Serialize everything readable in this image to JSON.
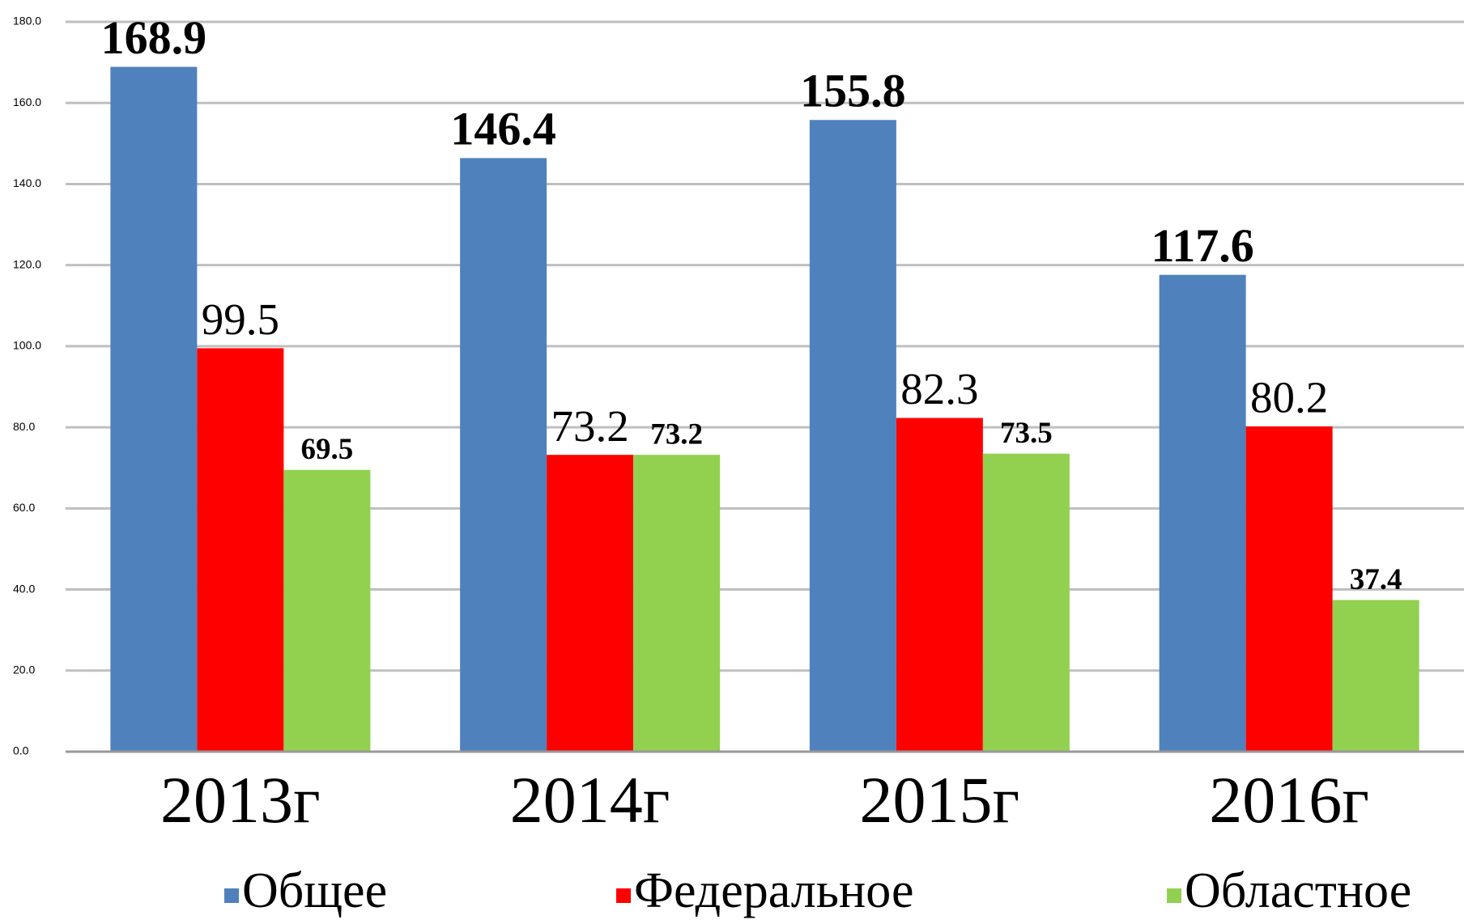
{
  "chart_data": {
    "type": "bar",
    "categories": [
      "2013г",
      "2014г",
      "2015г",
      "2016г"
    ],
    "series": [
      {
        "name": "Общее",
        "color": "#4f81bd",
        "values": [
          168.9,
          146.4,
          155.8,
          117.6
        ]
      },
      {
        "name": "Федеральное",
        "color": "#ff0000",
        "values": [
          99.5,
          73.2,
          82.3,
          80.2
        ]
      },
      {
        "name": "Областное",
        "color": "#92d050",
        "values": [
          69.5,
          73.2,
          73.5,
          37.4
        ]
      }
    ],
    "ylim": [
      0,
      180
    ],
    "yticks": [
      {
        "value": 0,
        "label": "0.0"
      },
      {
        "value": 20,
        "label": "20.0"
      },
      {
        "value": 40,
        "label": "40.0"
      },
      {
        "value": 60,
        "label": "60.0"
      },
      {
        "value": 80,
        "label": "80.0"
      },
      {
        "value": 100,
        "label": "100.0"
      },
      {
        "value": 120,
        "label": "120.0"
      },
      {
        "value": 140,
        "label": "140.0"
      },
      {
        "value": 160,
        "label": "160.0"
      },
      {
        "value": 180,
        "label": "180.0"
      }
    ],
    "grid": true,
    "legend": "bottom"
  }
}
